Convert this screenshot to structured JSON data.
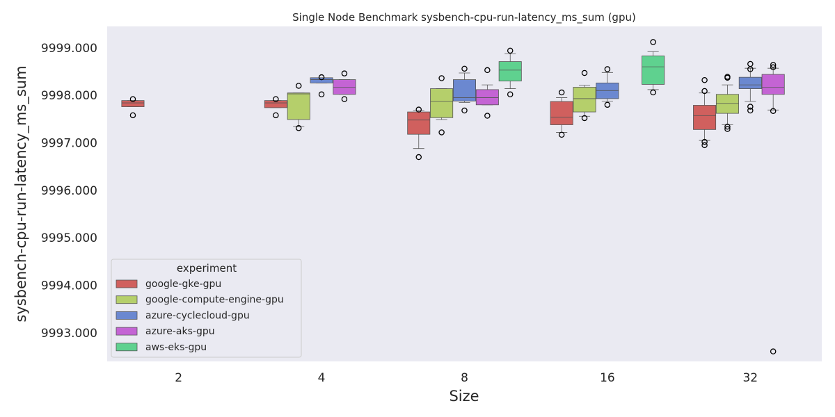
{
  "chart_data": {
    "type": "box",
    "title": "Single Node Benchmark sysbench-cpu-run-latency_ms_sum (gpu)",
    "xlabel": "Size",
    "ylabel": "sysbench-cpu-run-latency_ms_sum",
    "categories": [
      "2",
      "4",
      "8",
      "16",
      "32"
    ],
    "ylim": [
      9992.4,
      9999.45
    ],
    "yticks": [
      9993,
      9994,
      9995,
      9996,
      9997,
      9998,
      9999
    ],
    "ytick_labels": [
      "9993.000",
      "9994.000",
      "9995.000",
      "9996.000",
      "9997.000",
      "9998.000",
      "9999.000"
    ],
    "grid": false,
    "background": "#eaeaf2",
    "legend": {
      "title": "experiment",
      "position": "lower-left"
    },
    "series": [
      {
        "name": "google-gke-gpu",
        "color": "#d0605e",
        "boxes": [
          {
            "category": "2",
            "whislo": 9997.76,
            "q1": 9997.76,
            "med": 9997.84,
            "q3": 9997.89,
            "whishi": 9997.89,
            "fliers": [
              9997.92,
              9997.58
            ]
          },
          {
            "category": "4",
            "whislo": 9997.74,
            "q1": 9997.74,
            "med": 9997.84,
            "q3": 9997.89,
            "whishi": 9997.89,
            "fliers": [
              9997.92,
              9997.58
            ]
          },
          {
            "category": "8",
            "whislo": 9996.88,
            "q1": 9997.18,
            "med": 9997.48,
            "q3": 9997.65,
            "whishi": 9997.68,
            "fliers": [
              9997.7,
              9996.7
            ]
          },
          {
            "category": "16",
            "whislo": 9997.22,
            "q1": 9997.38,
            "med": 9997.54,
            "q3": 9997.87,
            "whishi": 9997.95,
            "fliers": [
              9998.06,
              9997.17
            ]
          },
          {
            "category": "32",
            "whislo": 9997.05,
            "q1": 9997.28,
            "med": 9997.57,
            "q3": 9997.79,
            "whishi": 9998.05,
            "fliers": [
              9998.32,
              9998.09,
              9997.02,
              9996.95
            ]
          }
        ]
      },
      {
        "name": "google-compute-engine-gpu",
        "color": "#b5cf6b",
        "boxes": [
          {
            "category": "2",
            "empty": true
          },
          {
            "category": "4",
            "whislo": 9997.34,
            "q1": 9997.49,
            "med": 9998.03,
            "q3": 9998.05,
            "whishi": 9998.05,
            "fliers": [
              9998.2,
              9997.31
            ]
          },
          {
            "category": "8",
            "whislo": 9997.49,
            "q1": 9997.53,
            "med": 9997.87,
            "q3": 9998.14,
            "whishi": 9998.14,
            "fliers": [
              9998.36,
              9997.22
            ]
          },
          {
            "category": "16",
            "whislo": 9997.56,
            "q1": 9997.65,
            "med": 9997.93,
            "q3": 9998.17,
            "whishi": 9998.21,
            "fliers": [
              9998.47,
              9997.52
            ]
          },
          {
            "category": "32",
            "whislo": 9997.38,
            "q1": 9997.62,
            "med": 9997.83,
            "q3": 9998.02,
            "whishi": 9998.22,
            "fliers": [
              9998.39,
              9998.37,
              9997.34,
              9997.29
            ]
          }
        ]
      },
      {
        "name": "azure-cyclecloud-gpu",
        "color": "#6b88d0",
        "boxes": [
          {
            "category": "2",
            "empty": true
          },
          {
            "category": "4",
            "whislo": 9998.26,
            "q1": 9998.26,
            "med": 9998.33,
            "q3": 9998.37,
            "whishi": 9998.37,
            "fliers": [
              9998.38,
              9998.02
            ]
          },
          {
            "category": "8",
            "whislo": 9997.85,
            "q1": 9997.88,
            "med": 9997.95,
            "q3": 9998.33,
            "whishi": 9998.47,
            "fliers": [
              9998.56,
              9997.68
            ]
          },
          {
            "category": "16",
            "whislo": 9997.88,
            "q1": 9997.93,
            "med": 9998.1,
            "q3": 9998.26,
            "whishi": 9998.48,
            "fliers": [
              9998.55,
              9997.8
            ]
          },
          {
            "category": "32",
            "whislo": 9997.87,
            "q1": 9998.14,
            "med": 9998.22,
            "q3": 9998.38,
            "whishi": 9998.57,
            "fliers": [
              9998.66,
              9998.55,
              9997.76,
              9997.68
            ]
          }
        ]
      },
      {
        "name": "azure-aks-gpu",
        "color": "#c464d4",
        "boxes": [
          {
            "category": "2",
            "empty": true
          },
          {
            "category": "4",
            "whislo": 9998.02,
            "q1": 9998.02,
            "med": 9998.17,
            "q3": 9998.33,
            "whishi": 9998.33,
            "fliers": [
              9998.46,
              9997.92
            ]
          },
          {
            "category": "8",
            "whislo": 9997.8,
            "q1": 9997.8,
            "med": 9997.95,
            "q3": 9998.12,
            "whishi": 9998.22,
            "fliers": [
              9998.53,
              9997.57
            ]
          },
          {
            "category": "16",
            "empty": true
          },
          {
            "category": "32",
            "whislo": 9997.69,
            "q1": 9998.02,
            "med": 9998.17,
            "q3": 9998.44,
            "whishi": 9998.57,
            "fliers": [
              9998.64,
              9998.59,
              9997.67,
              9992.61
            ]
          }
        ]
      },
      {
        "name": "aws-eks-gpu",
        "color": "#5fd18f",
        "boxes": [
          {
            "category": "2",
            "empty": true
          },
          {
            "category": "4",
            "empty": true
          },
          {
            "category": "8",
            "whislo": 9998.14,
            "q1": 9998.3,
            "med": 9998.53,
            "q3": 9998.71,
            "whishi": 9998.87,
            "fliers": [
              9998.94,
              9998.02
            ]
          },
          {
            "category": "16",
            "whislo": 9998.12,
            "q1": 9998.23,
            "med": 9998.6,
            "q3": 9998.83,
            "whishi": 9998.92,
            "fliers": [
              9999.12,
              9998.06
            ]
          },
          {
            "category": "32",
            "empty": true
          }
        ]
      }
    ]
  }
}
